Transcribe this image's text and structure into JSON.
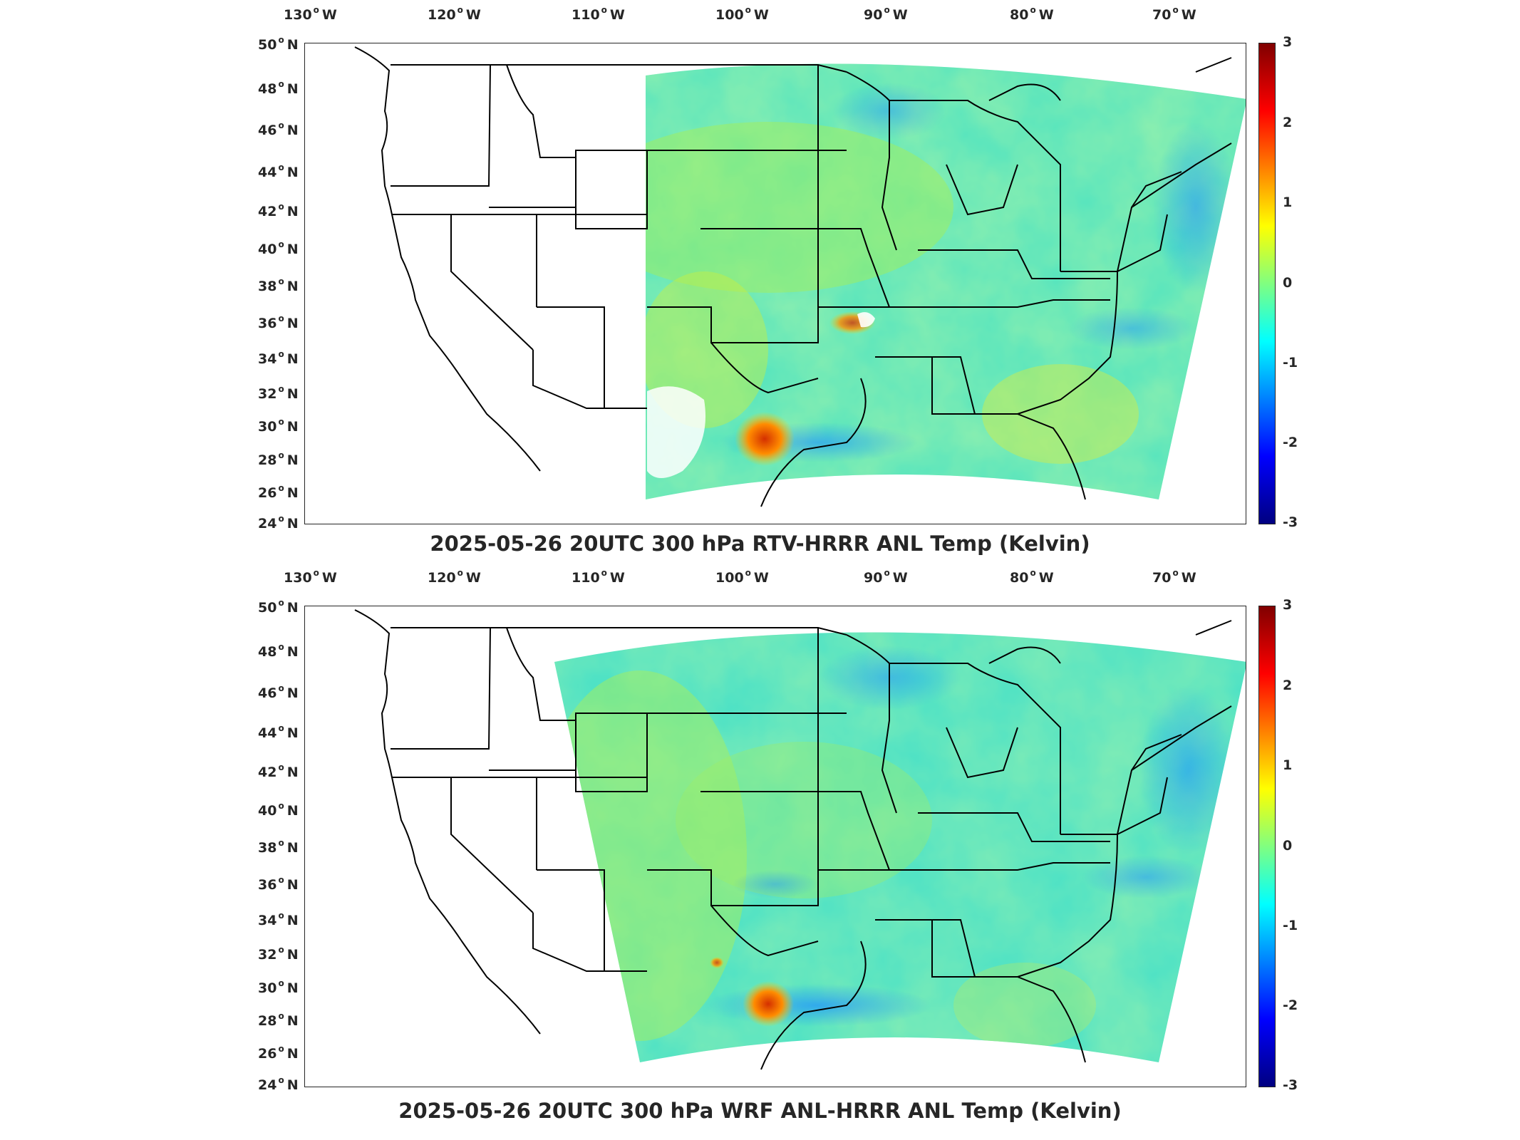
{
  "panels": [
    {
      "title": "2025-05-26 20UTC 300 hPa RTV-HRRR ANL Temp (Kelvin)",
      "colorbar_ticks": [
        "3",
        "2",
        "1",
        "0",
        "-1",
        "-2",
        "-3"
      ],
      "data_range": [
        -3,
        3
      ]
    },
    {
      "title": "2025-05-26 20UTC 300 hPa WRF ANL-HRRR ANL Temp (Kelvin)",
      "colorbar_ticks": [
        "3",
        "2",
        "1",
        "0",
        "-1",
        "-2",
        "-3"
      ],
      "data_range": [
        -3,
        3
      ]
    }
  ],
  "lon_ticks": [
    "130",
    "120",
    "110",
    "100",
    "90",
    "80",
    "70"
  ],
  "lon_hemisphere": "W",
  "lat_ticks": [
    "50",
    "48",
    "46",
    "44",
    "42",
    "40",
    "38",
    "36",
    "34",
    "32",
    "30",
    "28",
    "26",
    "24"
  ],
  "lat_hemisphere": "N",
  "colormap": "jet",
  "colors": {
    "field_base": "#3fe0c8",
    "warm_anomaly": "#e04000",
    "cool_anomaly": "#1e90ff",
    "border": "#000000"
  }
}
